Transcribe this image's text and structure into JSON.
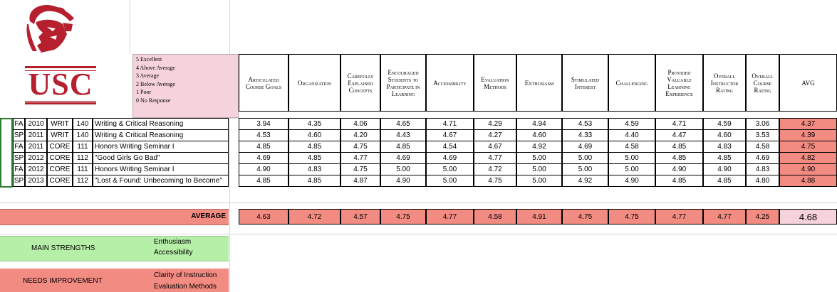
{
  "logo": {
    "text": "USC",
    "helmet_color": "#b51f2e"
  },
  "legend": [
    "5  Excellent",
    "4  Above Average",
    "3  Average",
    "2  Below Average",
    "1  Poor",
    "0  No Response"
  ],
  "columns": [
    "Articulated Course Goals",
    "Organization",
    "Carefully Explained Concepts",
    "Encouraged Students to Participate in Learning",
    "Accessibility",
    "Evaluation Methods",
    "Enthusiasm",
    "Stimulated Interest",
    "Challenging",
    "Provided Valuable Learning Experience",
    "Overall Instructor Rating",
    "Overall Course Rating",
    "AVG"
  ],
  "rows": [
    {
      "term": "FA",
      "year": "2010",
      "dept": "WRIT",
      "num": "140",
      "title": "Writing & Critical Reasoning",
      "values": [
        "3.94",
        "4.35",
        "4.06",
        "4.65",
        "4.71",
        "4.29",
        "4.94",
        "4.53",
        "4.59",
        "4.71",
        "4.59",
        "3.06"
      ],
      "avg": "4.37"
    },
    {
      "term": "SP",
      "year": "2011",
      "dept": "WRIT",
      "num": "140",
      "title": "Writing & Critical Reasoning",
      "values": [
        "4.53",
        "4.60",
        "4.20",
        "4.43",
        "4.67",
        "4.27",
        "4.60",
        "4.33",
        "4.40",
        "4.47",
        "4.60",
        "3.53"
      ],
      "avg": "4.39"
    },
    {
      "term": "FA",
      "year": "2011",
      "dept": "CORE",
      "num": "111",
      "title": "Honors Writing Seminar I",
      "values": [
        "4.85",
        "4.85",
        "4.75",
        "4.85",
        "4.54",
        "4.67",
        "4.92",
        "4.69",
        "4.58",
        "4.85",
        "4.83",
        "4.58"
      ],
      "avg": "4.75"
    },
    {
      "term": "SP",
      "year": "2012",
      "dept": "CORE",
      "num": "112",
      "title": "\"Good Girls Go Bad\"",
      "values": [
        "4.69",
        "4.85",
        "4.77",
        "4.69",
        "4.69",
        "4.77",
        "5.00",
        "5.00",
        "5.00",
        "4.85",
        "4.85",
        "4.69"
      ],
      "avg": "4.82"
    },
    {
      "term": "FA",
      "year": "2012",
      "dept": "CORE",
      "num": "111",
      "title": "Honors Writing Seminar I",
      "values": [
        "4.90",
        "4.83",
        "4.75",
        "5.00",
        "5.00",
        "4.72",
        "5.00",
        "5.00",
        "5.00",
        "4.90",
        "4.90",
        "4.83"
      ],
      "avg": "4.90"
    },
    {
      "term": "SP",
      "year": "2013",
      "dept": "CORE",
      "num": "112",
      "title": "\"Lost & Found: Unbecoming to Become\"",
      "values": [
        "4.85",
        "4.85",
        "4.87",
        "4.90",
        "5.00",
        "4.75",
        "5.00",
        "4.92",
        "4.90",
        "4.85",
        "4.85",
        "4.80"
      ],
      "avg": "4.88"
    }
  ],
  "average": {
    "label": "AVERAGE",
    "values": [
      "4.63",
      "4.72",
      "4.57",
      "4.75",
      "4.77",
      "4.58",
      "4.91",
      "4.75",
      "4.75",
      "4.77",
      "4.77",
      "4.25"
    ],
    "overall": "4.68"
  },
  "strengths": {
    "label": "MAIN STRENGTHS",
    "items": [
      "Enthusiasm",
      "Accessibility"
    ]
  },
  "improvement": {
    "label": "NEEDS IMPROVEMENT",
    "items": [
      "Clarity of Instruction",
      "Evaluation Methods"
    ]
  },
  "colors": {
    "avg_red": "#f28b82",
    "legend_pink": "#f6d3dc",
    "strength_green": "#b6efa8"
  }
}
